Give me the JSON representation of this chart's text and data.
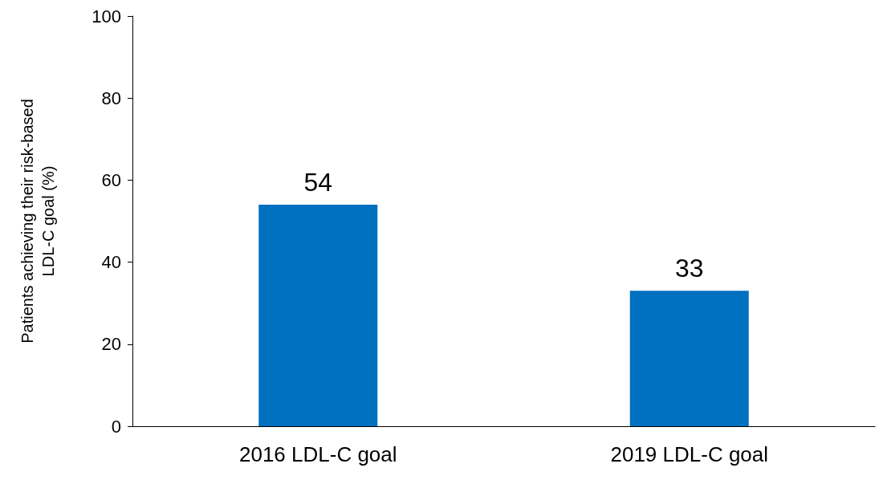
{
  "chart_data": {
    "type": "bar",
    "ylabel": "Patients achieving their risk-based\nLDL-C goal (%)",
    "categories": [
      "2016 LDL-C goal",
      "2019 LDL-C goal"
    ],
    "values": [
      54,
      33
    ],
    "color": "#0070c0",
    "ylim": [
      0,
      100
    ],
    "yticks": [
      0,
      20,
      40,
      60,
      80,
      100
    ],
    "grid": false,
    "data_labels": true
  }
}
